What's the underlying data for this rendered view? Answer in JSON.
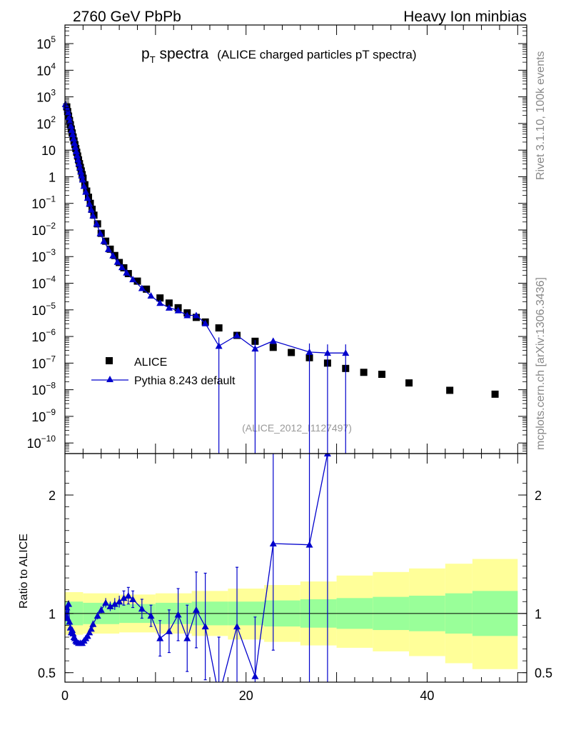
{
  "header": {
    "left": "2760 GeV PbPb",
    "right": "Heavy Ion minbias"
  },
  "title": {
    "main": "p",
    "sub": "T",
    "main_rest": " spectra",
    "detail": "(ALICE charged particles pT spectra)"
  },
  "side_labels": {
    "rivet": "Rivet 3.1.10,  100k events",
    "mcplots": "mcplots.cern.ch [arXiv:1306.3436]"
  },
  "analysis_label": "(ALICE_2012_I1127497)",
  "colors": {
    "data": "#000000",
    "mc": "#0000cc",
    "band_inner": "#99ff99",
    "band_outer": "#ffff99"
  },
  "chart_data": [
    {
      "type": "scatter",
      "panel": "main",
      "yscale": "log",
      "xlim": [
        0,
        51
      ],
      "ylim": [
        4e-11,
        500000.0
      ],
      "ylabel": "",
      "y_ticks": [
        {
          "v": 100000.0,
          "base": "10",
          "exp": "5"
        },
        {
          "v": 10000.0,
          "base": "10",
          "exp": "4"
        },
        {
          "v": 1000.0,
          "base": "10",
          "exp": "3"
        },
        {
          "v": 100.0,
          "base": "10",
          "exp": "2"
        },
        {
          "v": 10,
          "base": "10",
          "exp": ""
        },
        {
          "v": 1,
          "base": "1",
          "exp": ""
        },
        {
          "v": 0.1,
          "base": "10",
          "exp": "−1"
        },
        {
          "v": 0.01,
          "base": "10",
          "exp": "−2"
        },
        {
          "v": 0.001,
          "base": "10",
          "exp": "−3"
        },
        {
          "v": 0.0001,
          "base": "10",
          "exp": "−4"
        },
        {
          "v": 1e-05,
          "base": "10",
          "exp": "−5"
        },
        {
          "v": 1e-06,
          "base": "10",
          "exp": "−6"
        },
        {
          "v": 1e-07,
          "base": "10",
          "exp": "−7"
        },
        {
          "v": 1e-08,
          "base": "10",
          "exp": "−8"
        },
        {
          "v": 1e-09,
          "base": "10",
          "exp": "−9"
        },
        {
          "v": 1e-10,
          "base": "10",
          "exp": "−10"
        }
      ],
      "legend": [
        {
          "name": "ALICE",
          "marker": "square"
        },
        {
          "name": "Pythia 8.243 default",
          "marker": "triangle"
        }
      ],
      "series": [
        {
          "name": "ALICE",
          "points": [
            [
              0.2,
              420
            ],
            [
              0.3,
              280
            ],
            [
              0.4,
              190
            ],
            [
              0.5,
              130
            ],
            [
              0.6,
              90
            ],
            [
              0.7,
              62
            ],
            [
              0.8,
              44
            ],
            [
              0.9,
              31
            ],
            [
              1.0,
              22
            ],
            [
              1.1,
              16
            ],
            [
              1.2,
              11.5
            ],
            [
              1.3,
              8.3
            ],
            [
              1.4,
              6.0
            ],
            [
              1.5,
              4.3
            ],
            [
              1.6,
              3.1
            ],
            [
              1.7,
              2.25
            ],
            [
              1.8,
              1.65
            ],
            [
              1.9,
              1.2
            ],
            [
              2.0,
              0.88
            ],
            [
              2.2,
              0.5
            ],
            [
              2.4,
              0.29
            ],
            [
              2.6,
              0.17
            ],
            [
              2.8,
              0.1
            ],
            [
              3.0,
              0.06
            ],
            [
              3.2,
              0.036
            ],
            [
              3.6,
              0.017
            ],
            [
              4.0,
              0.0075
            ],
            [
              4.5,
              0.0038
            ],
            [
              5.0,
              0.0019
            ],
            [
              5.5,
              0.0011
            ],
            [
              6.0,
              0.0006
            ],
            [
              6.5,
              0.00038
            ],
            [
              7.0,
              0.00023
            ],
            [
              8.0,
              0.00012
            ],
            [
              9.0,
              6e-05
            ],
            [
              10.5,
              2.8e-05
            ],
            [
              11.5,
              1.8e-05
            ],
            [
              12.5,
              1.2e-05
            ],
            [
              13.5,
              7.7e-06
            ],
            [
              14.5,
              5.2e-06
            ],
            [
              15.5,
              3.5e-06
            ],
            [
              17.0,
              2.1e-06
            ],
            [
              19.0,
              1.1e-06
            ],
            [
              21.0,
              6.6e-07
            ],
            [
              23.0,
              3.9e-07
            ],
            [
              25.0,
              2.5e-07
            ],
            [
              27.0,
              1.6e-07
            ],
            [
              29.0,
              1e-07
            ],
            [
              31.0,
              6.3e-08
            ],
            [
              33.0,
              4.5e-08
            ],
            [
              35.0,
              3.8e-08
            ],
            [
              38.0,
              1.8e-08
            ],
            [
              42.5,
              9.5e-09
            ],
            [
              47.5,
              6.8e-09
            ]
          ]
        },
        {
          "name": "Pythia 8.243 default",
          "points": [
            [
              0.05,
              530
            ],
            [
              0.15,
              440
            ],
            [
              0.25,
              340
            ],
            [
              0.35,
              250
            ],
            [
              0.45,
              170
            ],
            [
              0.55,
              120
            ],
            [
              0.65,
              82
            ],
            [
              0.75,
              56
            ],
            [
              0.85,
              39
            ],
            [
              0.95,
              27
            ],
            [
              1.05,
              18.5
            ],
            [
              1.15,
              13
            ],
            [
              1.25,
              9
            ],
            [
              1.35,
              6.3
            ],
            [
              1.45,
              4.4
            ],
            [
              1.55,
              3.1
            ],
            [
              1.65,
              2.2
            ],
            [
              1.75,
              1.55
            ],
            [
              1.85,
              1.1
            ],
            [
              1.95,
              0.78
            ],
            [
              2.1,
              0.45
            ],
            [
              2.3,
              0.27
            ],
            [
              2.5,
              0.16
            ],
            [
              2.7,
              0.097
            ],
            [
              2.9,
              0.058
            ],
            [
              3.1,
              0.035
            ],
            [
              3.5,
              0.017
            ],
            [
              3.9,
              0.0075
            ],
            [
              4.3,
              0.0038
            ],
            [
              4.8,
              0.0019
            ],
            [
              5.3,
              0.0011
            ],
            [
              5.8,
              0.00063
            ],
            [
              6.3,
              0.0004
            ],
            [
              6.8,
              0.00025
            ],
            [
              7.5,
              0.00014
            ],
            [
              8.5,
              6.5e-05
            ],
            [
              9.5,
              3.4e-05
            ],
            [
              10.5,
              1.8e-05
            ],
            [
              11.5,
              1.2e-05
            ],
            [
              12.5,
              9.5e-06
            ],
            [
              13.5,
              6.2e-06
            ],
            [
              14.5,
              6.2e-06
            ],
            [
              15.5,
              3.1e-06
            ],
            [
              17.0,
              4.4e-07
            ],
            [
              19.0,
              1.1e-06
            ],
            [
              21.0,
              3.5e-07
            ],
            [
              23.0,
              6.8e-07
            ],
            [
              27.0,
              2.6e-07
            ],
            [
              29.0,
              2.4e-07
            ],
            [
              31.0,
              2.4e-07
            ]
          ]
        }
      ]
    },
    {
      "type": "line",
      "panel": "ratio",
      "xlim": [
        0,
        51
      ],
      "ylim": [
        0.42,
        2.35
      ],
      "ylabel": "Ratio to ALICE",
      "y_ticks": [
        {
          "v": 0.5,
          "label": "0.5"
        },
        {
          "v": 1,
          "label": "1"
        },
        {
          "v": 2,
          "label": "2"
        }
      ],
      "x_ticks": [
        {
          "v": 0,
          "label": "0"
        },
        {
          "v": 20,
          "label": "20"
        },
        {
          "v": 40,
          "label": "40"
        }
      ],
      "bands": [
        {
          "x0": 0,
          "x1": 2,
          "inner": [
            0.9,
            1.1
          ],
          "outer": [
            0.82,
            1.18
          ]
        },
        {
          "x0": 2,
          "x1": 6,
          "inner": [
            0.91,
            1.09
          ],
          "outer": [
            0.83,
            1.17
          ]
        },
        {
          "x0": 6,
          "x1": 10,
          "inner": [
            0.92,
            1.08
          ],
          "outer": [
            0.84,
            1.16
          ]
        },
        {
          "x0": 10,
          "x1": 14,
          "inner": [
            0.91,
            1.09
          ],
          "outer": [
            0.83,
            1.17
          ]
        },
        {
          "x0": 14,
          "x1": 18,
          "inner": [
            0.9,
            1.1
          ],
          "outer": [
            0.81,
            1.19
          ]
        },
        {
          "x0": 18,
          "x1": 22,
          "inner": [
            0.9,
            1.1
          ],
          "outer": [
            0.78,
            1.21
          ]
        },
        {
          "x0": 22,
          "x1": 26,
          "inner": [
            0.89,
            1.11
          ],
          "outer": [
            0.76,
            1.24
          ]
        },
        {
          "x0": 26,
          "x1": 30,
          "inner": [
            0.88,
            1.12
          ],
          "outer": [
            0.73,
            1.27
          ]
        },
        {
          "x0": 30,
          "x1": 34,
          "inner": [
            0.87,
            1.13
          ],
          "outer": [
            0.71,
            1.32
          ]
        },
        {
          "x0": 34,
          "x1": 38,
          "inner": [
            0.86,
            1.14
          ],
          "outer": [
            0.68,
            1.35
          ]
        },
        {
          "x0": 38,
          "x1": 42,
          "inner": [
            0.85,
            1.15
          ],
          "outer": [
            0.64,
            1.38
          ]
        },
        {
          "x0": 42,
          "x1": 45,
          "inner": [
            0.83,
            1.17
          ],
          "outer": [
            0.58,
            1.42
          ]
        },
        {
          "x0": 45,
          "x1": 50,
          "inner": [
            0.81,
            1.19
          ],
          "outer": [
            0.53,
            1.46
          ]
        }
      ],
      "series": [
        {
          "name": "Pythia 8.243 default",
          "points": [
            [
              0.1,
              0.98,
              0.04
            ],
            [
              0.2,
              1.05,
              0.03
            ],
            [
              0.3,
              0.96,
              0.03
            ],
            [
              0.4,
              1.08,
              0.03
            ],
            [
              0.5,
              0.93,
              0.03
            ],
            [
              0.6,
              0.88,
              0.03
            ],
            [
              0.7,
              0.84,
              0.02
            ],
            [
              0.8,
              0.86,
              0.02
            ],
            [
              0.9,
              0.83,
              0.02
            ],
            [
              1.0,
              0.8,
              0.02
            ],
            [
              1.1,
              0.79,
              0.02
            ],
            [
              1.2,
              0.77,
              0.02
            ],
            [
              1.3,
              0.76,
              0.02
            ],
            [
              1.5,
              0.75,
              0.02
            ],
            [
              1.7,
              0.75,
              0.02
            ],
            [
              1.9,
              0.75,
              0.02
            ],
            [
              2.1,
              0.77,
              0.02
            ],
            [
              2.3,
              0.79,
              0.02
            ],
            [
              2.5,
              0.81,
              0.02
            ],
            [
              2.7,
              0.84,
              0.02
            ],
            [
              2.9,
              0.87,
              0.02
            ],
            [
              3.1,
              0.91,
              0.03
            ],
            [
              3.6,
              0.98,
              0.03
            ],
            [
              4.0,
              1.03,
              0.03
            ],
            [
              4.5,
              1.09,
              0.04
            ],
            [
              5.0,
              1.06,
              0.04
            ],
            [
              5.5,
              1.08,
              0.05
            ],
            [
              6.0,
              1.1,
              0.05
            ],
            [
              6.5,
              1.13,
              0.06
            ],
            [
              7.0,
              1.15,
              0.07
            ],
            [
              7.5,
              1.12,
              0.07
            ],
            [
              8.5,
              1.04,
              0.08
            ],
            [
              9.5,
              0.98,
              0.09
            ],
            [
              10.5,
              0.79,
              0.15
            ],
            [
              11.5,
              0.85,
              0.18
            ],
            [
              12.5,
              0.99,
              0.22
            ],
            [
              13.5,
              0.79,
              0.28
            ],
            [
              14.5,
              1.03,
              0.32
            ],
            [
              15.5,
              0.89,
              0.45
            ],
            [
              17.0,
              0.3,
              0.5
            ],
            [
              19.0,
              0.89,
              0.5
            ],
            [
              21.0,
              0.47,
              0.5
            ],
            [
              23.0,
              1.59,
              0.9
            ],
            [
              27.0,
              1.58,
              1.6
            ],
            [
              29.0,
              2.35,
              2.0
            ]
          ]
        }
      ]
    }
  ]
}
